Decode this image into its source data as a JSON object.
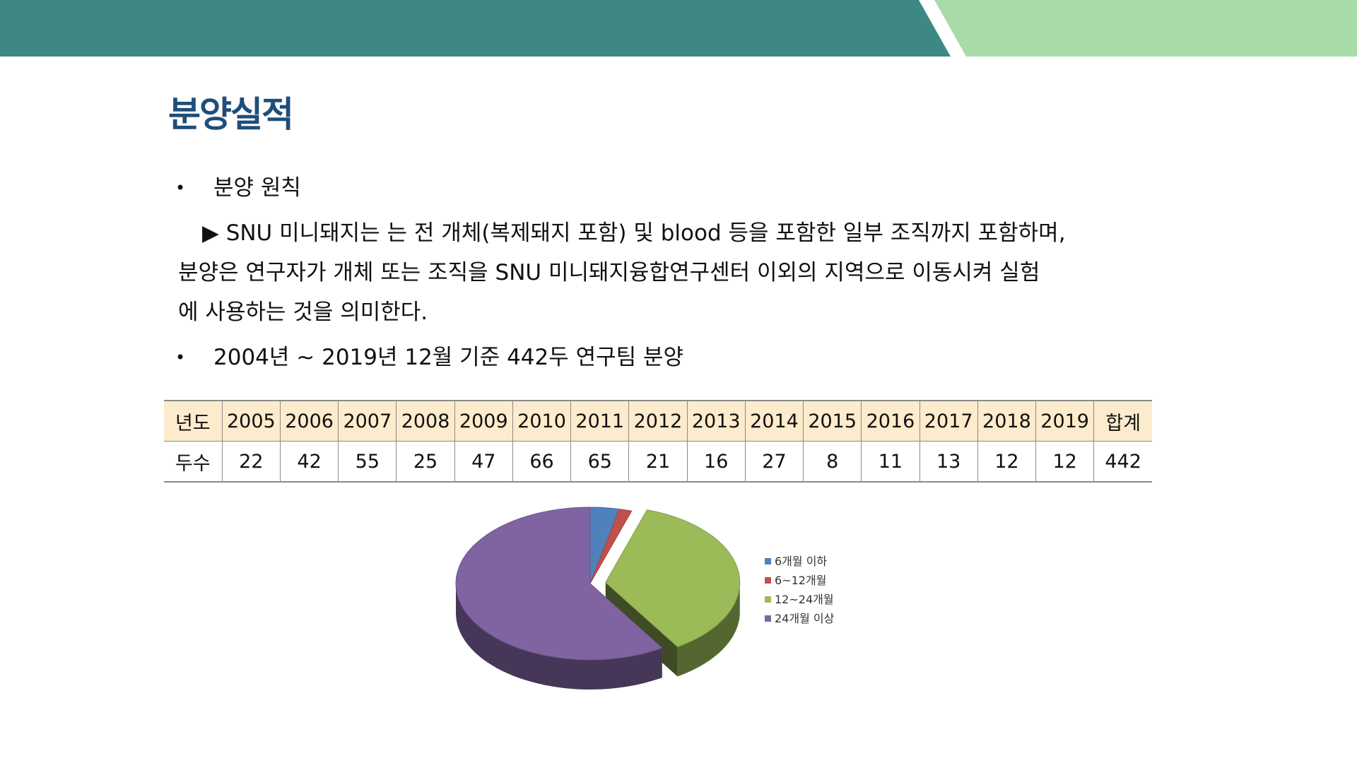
{
  "page": {
    "title": "분양실적",
    "bullets": [
      {
        "marker": "•",
        "text": "분양 원칙"
      },
      {
        "marker": "•",
        "text": "2004년 ~ 2019년 12월 기준 442두 연구팀 분양"
      }
    ],
    "paragraph_lines": [
      "▶ SNU 미니돼지는 는 전 개체(복제돼지 포함) 및 blood 등을 포함한 일부 조직까지 포함하며,",
      "분양은 연구자가 개체 또는 조직을 SNU 미니돼지융합연구센터 이외의 지역으로 이동시켜 실험",
      "에 사용하는 것을 의미한다."
    ]
  },
  "table": {
    "header": [
      "년도",
      "2005",
      "2006",
      "2007",
      "2008",
      "2009",
      "2010",
      "2011",
      "2012",
      "2013",
      "2014",
      "2015",
      "2016",
      "2017",
      "2018",
      "2019",
      "합계"
    ],
    "row": [
      "두수",
      "22",
      "42",
      "55",
      "25",
      "47",
      "66",
      "65",
      "21",
      "16",
      "27",
      "8",
      "11",
      "13",
      "12",
      "12",
      "442"
    ]
  },
  "colors": {
    "banner_teal": "#3d8884",
    "banner_green": "#a8dba8",
    "title": "#1f4e79",
    "table_header_bg": "#fcebcc"
  },
  "chart_data": {
    "type": "pie",
    "categories": [
      "6개월 이하",
      "6~12개월",
      "12~24개월",
      "24개월 이상"
    ],
    "values": [
      3.5,
      1.5,
      36,
      59
    ],
    "colors": [
      "#4f81bd",
      "#c0504d",
      "#9bbb59",
      "#8064a2"
    ],
    "exploded": [
      false,
      false,
      true,
      false
    ],
    "legend_position": "right",
    "three_d": true
  }
}
